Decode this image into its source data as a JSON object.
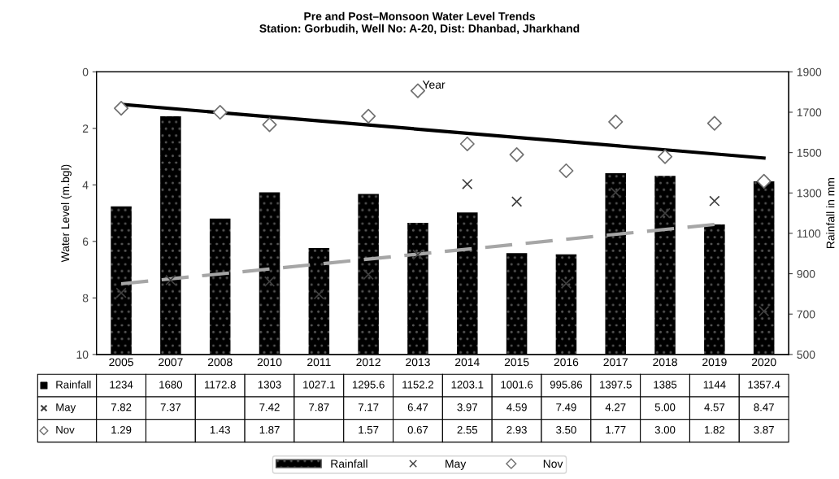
{
  "chart_data": {
    "type": "bar",
    "title": "Pre and Post–Monsoon Water Level Trends\nStation: Gorbudih, Well No: A-20, Dist: Dhanbad, Jharkhand",
    "ylabel": "Water Level (m.bgl)",
    "y2label": "Rainfall in mm",
    "categories": [
      "2005",
      "2007",
      "2008",
      "2010",
      "2011",
      "2012",
      "2013",
      "2014",
      "2015",
      "2016",
      "2017",
      "2018",
      "2019",
      "2020"
    ],
    "series": [
      {
        "name": "Rainfall",
        "axis": "y2",
        "color": "#000000",
        "values": [
          1234,
          1680,
          1172.8,
          1303,
          1027.1,
          1295.6,
          1152.2,
          1203.1,
          1001.6,
          995.86,
          1397.5,
          1385,
          1144,
          1357.4
        ],
        "value_labels": [
          "1234",
          "1680",
          "1172.8",
          "1303",
          "1027.1",
          "1295.6",
          "1152.2",
          "1203.1",
          "1001.6",
          "995.86",
          "1397.5",
          "1385",
          "1144",
          "1357.4"
        ]
      },
      {
        "name": "May",
        "type": "scatter",
        "marker": "cross",
        "color": "#404040",
        "values": [
          7.82,
          7.37,
          null,
          7.42,
          7.87,
          7.17,
          6.47,
          3.97,
          4.59,
          7.49,
          4.27,
          5.0,
          4.57,
          8.47
        ],
        "value_labels": [
          "7.82",
          "7.37",
          null,
          "7.42",
          "7.87",
          "7.17",
          "6.47",
          "3.97",
          "4.59",
          "7.49",
          "4.27",
          "5.00",
          "4.57",
          "8.47"
        ]
      },
      {
        "name": "Nov",
        "type": "scatter",
        "marker": "diamond",
        "color": "#707070",
        "values": [
          1.29,
          null,
          1.43,
          1.87,
          null,
          1.57,
          0.67,
          2.55,
          2.93,
          3.5,
          1.77,
          3.0,
          1.82,
          3.87
        ],
        "value_labels": [
          "1.29",
          null,
          "1.43",
          "1.87",
          null,
          "1.57",
          "0.67",
          "2.55",
          "2.93",
          "3.50",
          "1.77",
          "3.00",
          "1.82",
          "3.87"
        ]
      },
      {
        "type": "line",
        "line_style": "dashed",
        "color": "#a6a6a6",
        "values": [
          7.5,
          null,
          null,
          null,
          null,
          null,
          null,
          null,
          null,
          null,
          null,
          null,
          5.4,
          null
        ]
      },
      {
        "type": "line",
        "line_style": "solid",
        "color": "#000000",
        "values": [
          1.15,
          null,
          null,
          null,
          null,
          null,
          null,
          null,
          null,
          null,
          null,
          null,
          null,
          3.05
        ]
      }
    ],
    "ylim": [
      10,
      0
    ],
    "yticks": [
      0,
      2,
      4,
      6,
      8,
      10
    ],
    "y2lim": [
      500,
      1900
    ],
    "y2ticks": [
      500,
      700,
      900,
      1100,
      1300,
      1500,
      1700,
      1900
    ],
    "annotations": [
      {
        "text": "Year",
        "x": "2013",
        "y": 0.67
      }
    ],
    "grid": false,
    "legend": "bottom"
  }
}
